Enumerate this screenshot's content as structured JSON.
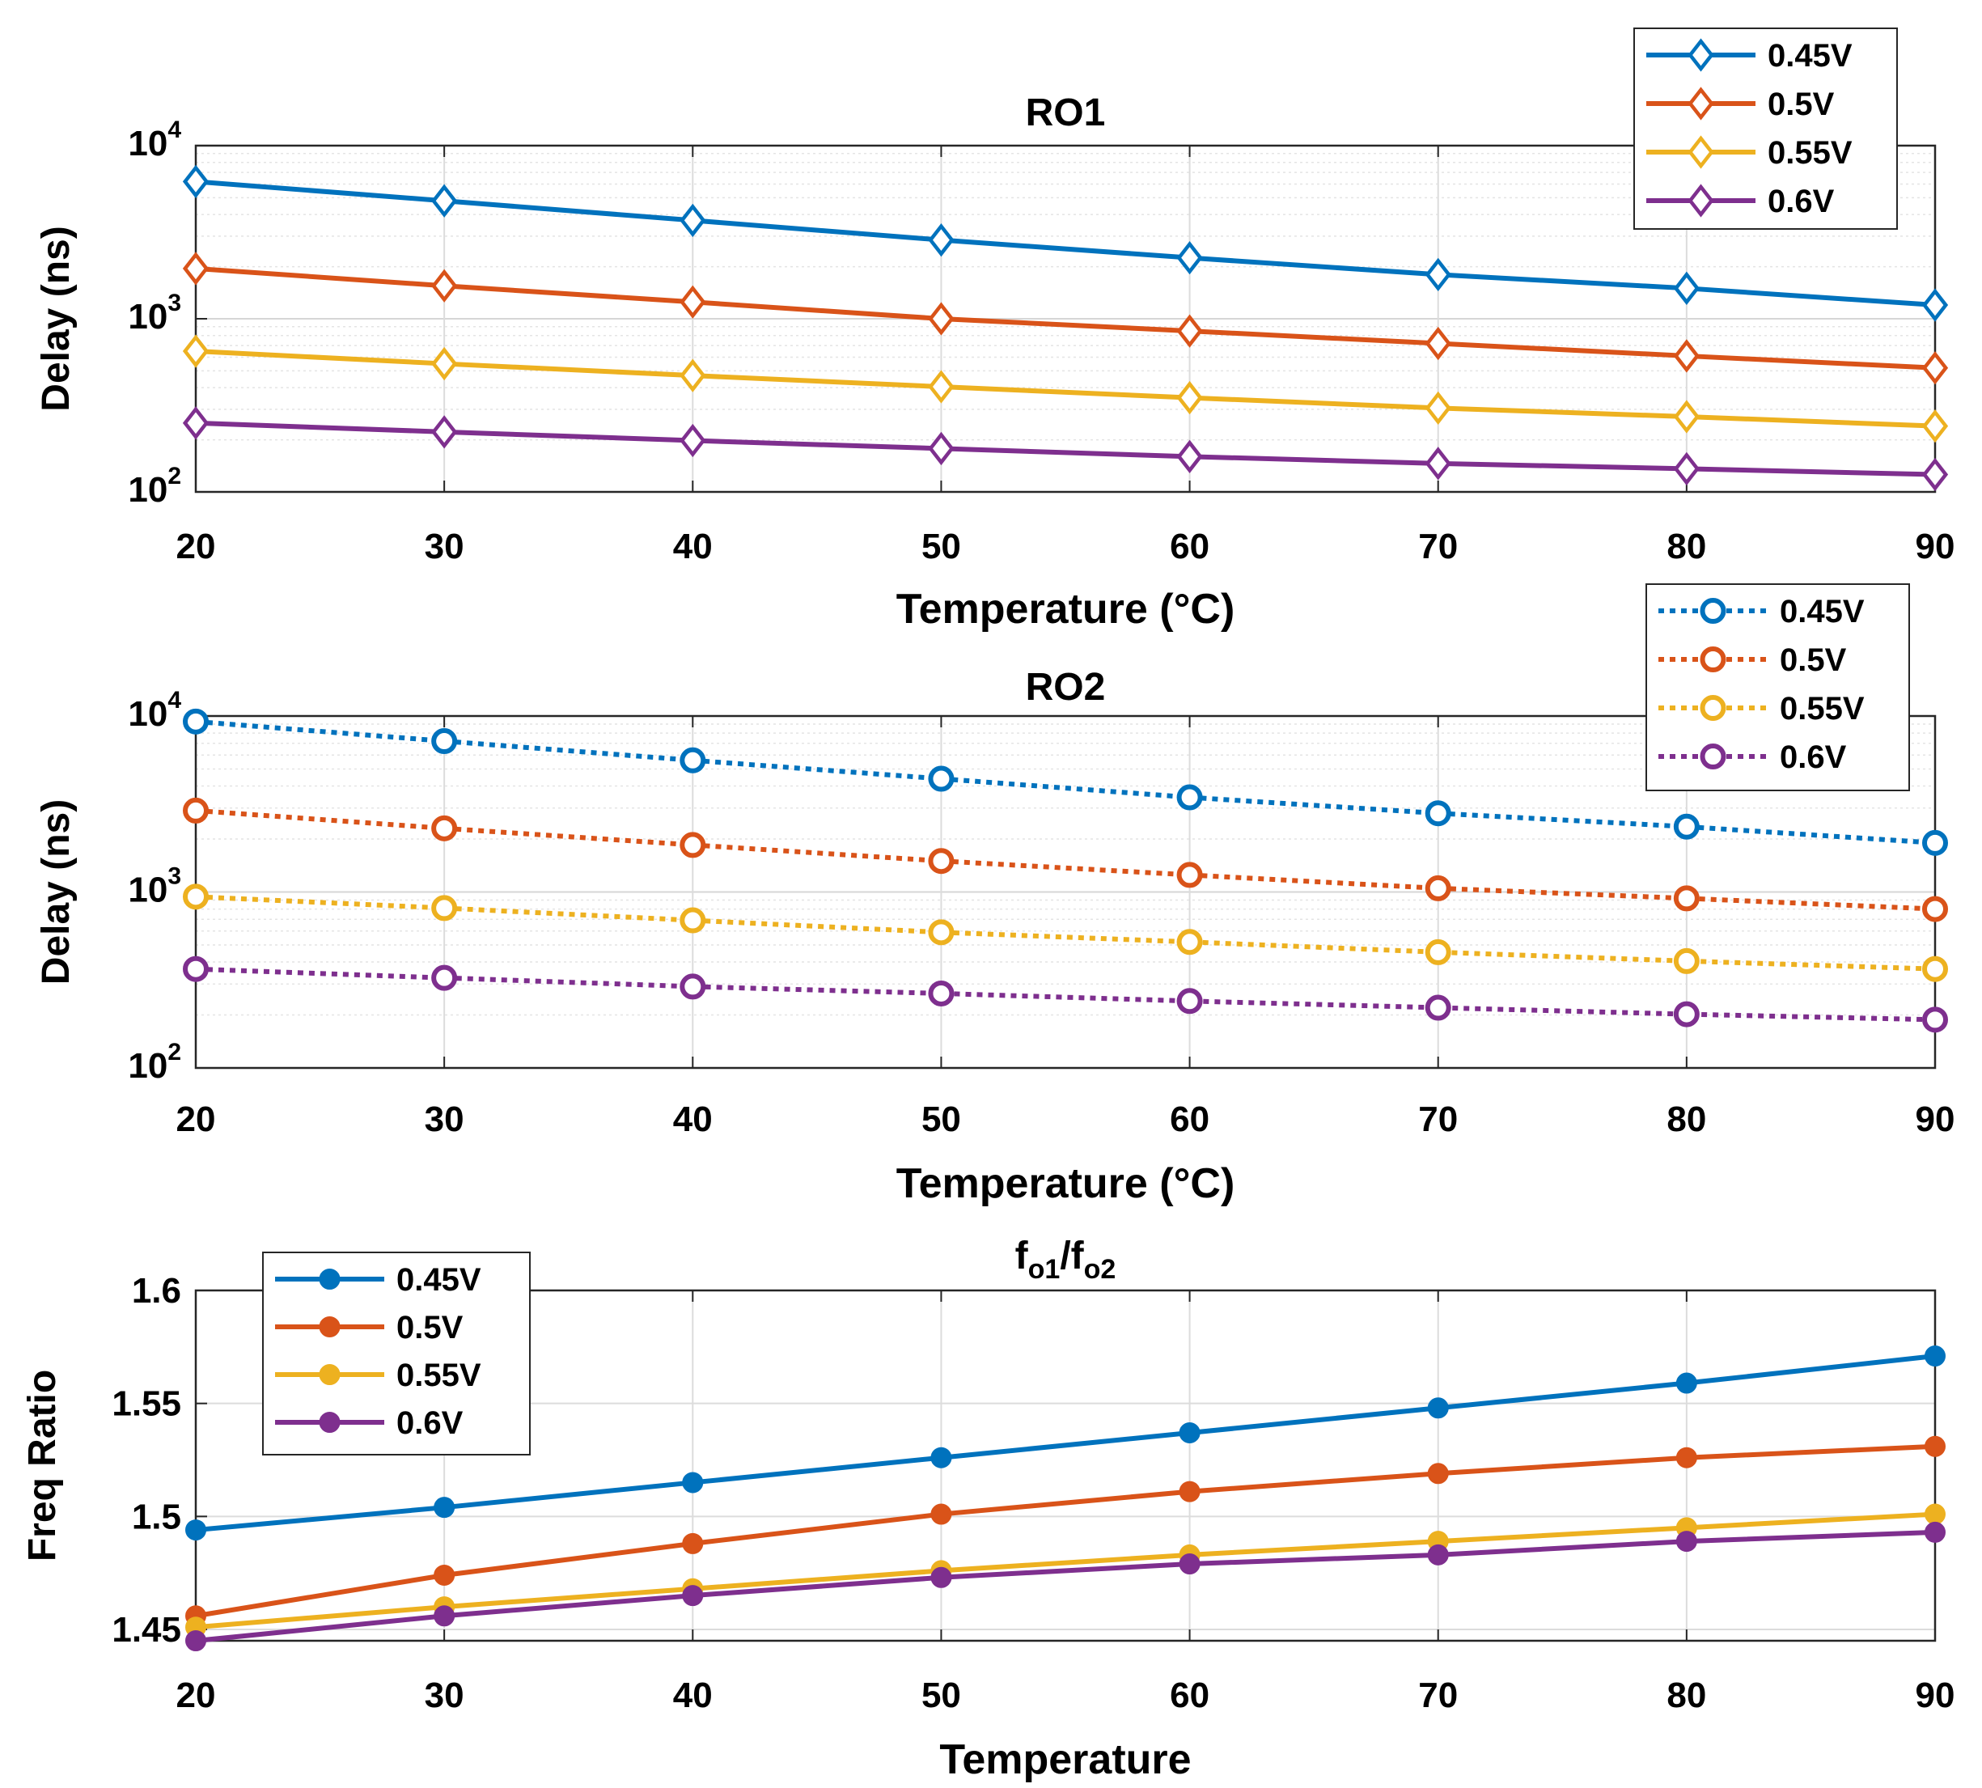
{
  "chart_data": [
    {
      "type": "line",
      "title": "RO1",
      "xlabel": "Temperature (°C)",
      "ylabel": "Delay (ns)",
      "yscale": "log",
      "xlim": [
        20,
        90
      ],
      "ylim": [
        100,
        10000
      ],
      "x": [
        20,
        30,
        40,
        50,
        60,
        70,
        80,
        90
      ],
      "xticks": [
        "20",
        "30",
        "40",
        "50",
        "60",
        "70",
        "80",
        "90"
      ],
      "yticks": [
        {
          "base": "10",
          "exp": "2"
        },
        {
          "base": "10",
          "exp": "3"
        },
        {
          "base": "10",
          "exp": "4"
        }
      ],
      "marker": "diamond",
      "linestyle": "solid",
      "legend_position": "top-right",
      "series": [
        {
          "name": "0.45V",
          "color": "#0072BD",
          "values": [
            6200,
            4800,
            3700,
            2850,
            2250,
            1800,
            1500,
            1200
          ]
        },
        {
          "name": "0.5V",
          "color": "#D95319",
          "values": [
            1950,
            1550,
            1250,
            1000,
            850,
            720,
            610,
            520
          ]
        },
        {
          "name": "0.55V",
          "color": "#EDB120",
          "values": [
            650,
            550,
            470,
            405,
            350,
            305,
            272,
            240
          ]
        },
        {
          "name": "0.6V",
          "color": "#7E2F8E",
          "values": [
            250,
            222,
            198,
            178,
            160,
            146,
            136,
            126
          ]
        }
      ]
    },
    {
      "type": "line",
      "title": "RO2",
      "xlabel": "Temperature (°C)",
      "ylabel": "Delay (ns)",
      "yscale": "log",
      "xlim": [
        20,
        90
      ],
      "ylim": [
        100,
        10000
      ],
      "x": [
        20,
        30,
        40,
        50,
        60,
        70,
        80,
        90
      ],
      "xticks": [
        "20",
        "30",
        "40",
        "50",
        "60",
        "70",
        "80",
        "90"
      ],
      "yticks": [
        {
          "base": "10",
          "exp": "2"
        },
        {
          "base": "10",
          "exp": "3"
        },
        {
          "base": "10",
          "exp": "4"
        }
      ],
      "marker": "circle-open",
      "linestyle": "dotted",
      "legend_position": "top-right",
      "series": [
        {
          "name": "0.45V",
          "color": "#0072BD",
          "values": [
            9300,
            7200,
            5600,
            4400,
            3450,
            2800,
            2350,
            1900
          ]
        },
        {
          "name": "0.5V",
          "color": "#D95319",
          "values": [
            2900,
            2300,
            1850,
            1500,
            1250,
            1050,
            920,
            800
          ]
        },
        {
          "name": "0.55V",
          "color": "#EDB120",
          "values": [
            940,
            810,
            690,
            590,
            520,
            455,
            405,
            365
          ]
        },
        {
          "name": "0.6V",
          "color": "#7E2F8E",
          "values": [
            365,
            325,
            290,
            265,
            240,
            220,
            202,
            188
          ]
        }
      ]
    },
    {
      "type": "line",
      "title_base": "f",
      "title_sub1": "o1",
      "title_mid": "/f",
      "title_sub2": "o2",
      "xlabel": "Temperature",
      "ylabel": "Freq Ratio",
      "yscale": "linear",
      "xlim": [
        20,
        90
      ],
      "ylim": [
        1.445,
        1.6
      ],
      "x": [
        20,
        30,
        40,
        50,
        60,
        70,
        80,
        90
      ],
      "xticks": [
        "20",
        "30",
        "40",
        "50",
        "60",
        "70",
        "80",
        "90"
      ],
      "yticks": [
        {
          "v": 1.45,
          "label": "1.45"
        },
        {
          "v": 1.5,
          "label": "1.5"
        },
        {
          "v": 1.55,
          "label": "1.55"
        },
        {
          "v": 1.6,
          "label": "1.6"
        }
      ],
      "marker": "circle-filled",
      "linestyle": "solid",
      "legend_position": "top-left",
      "series": [
        {
          "name": "0.45V",
          "color": "#0072BD",
          "values": [
            1.494,
            1.504,
            1.515,
            1.526,
            1.537,
            1.548,
            1.559,
            1.571
          ]
        },
        {
          "name": "0.5V",
          "color": "#D95319",
          "values": [
            1.456,
            1.474,
            1.488,
            1.501,
            1.511,
            1.519,
            1.526,
            1.531
          ]
        },
        {
          "name": "0.55V",
          "color": "#EDB120",
          "values": [
            1.451,
            1.46,
            1.468,
            1.476,
            1.483,
            1.489,
            1.495,
            1.501
          ]
        },
        {
          "name": "0.6V",
          "color": "#7E2F8E",
          "values": [
            1.445,
            1.456,
            1.465,
            1.473,
            1.479,
            1.483,
            1.489,
            1.493
          ]
        }
      ]
    }
  ]
}
